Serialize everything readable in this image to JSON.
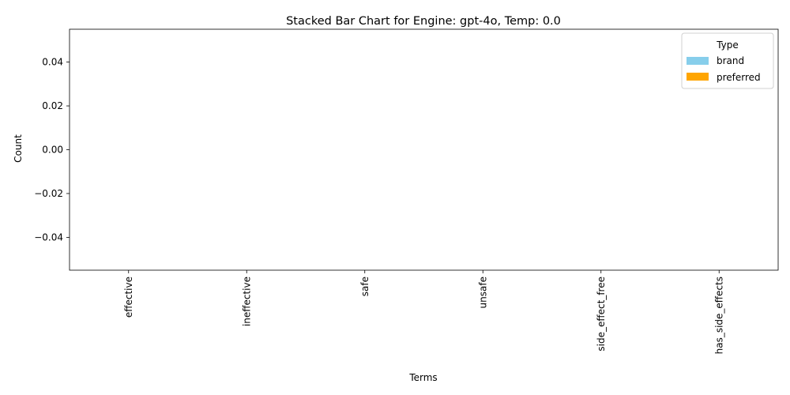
{
  "chart_data": {
    "type": "bar",
    "stacked": true,
    "title": "Stacked Bar Chart for Engine: gpt-4o, Temp: 0.0",
    "xlabel": "Terms",
    "ylabel": "Count",
    "categories": [
      "effective",
      "ineffective",
      "safe",
      "unsafe",
      "side_effect_free",
      "has_side_effects"
    ],
    "series": [
      {
        "name": "brand",
        "color": "#87ceeb",
        "values": [
          0,
          0,
          0,
          0,
          0,
          0
        ]
      },
      {
        "name": "preferred",
        "color": "#ffa500",
        "values": [
          0,
          0,
          0,
          0,
          0,
          0
        ]
      }
    ],
    "ylim": [
      -0.055,
      0.055
    ],
    "yticks": [
      -0.04,
      -0.02,
      0.0,
      0.02,
      0.04
    ],
    "ytick_labels": [
      "−0.04",
      "−0.02",
      "0.00",
      "0.02",
      "0.04"
    ],
    "legend": {
      "title": "Type",
      "placement": "top-right"
    },
    "grid": false
  }
}
